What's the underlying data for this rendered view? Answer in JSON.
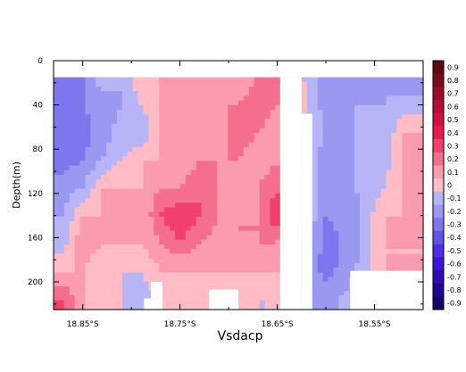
{
  "chart_data": {
    "type": "heatmap",
    "title": "",
    "xlabel": "Vsdacp",
    "ylabel": "Depth(m)",
    "x_ticks": [
      "18.85°S",
      "18.75°S",
      "18.65°S",
      "18.55°S"
    ],
    "x_tick_values": [
      -18.85,
      -18.75,
      -18.65,
      -18.55
    ],
    "xlim": [
      -18.88,
      -18.5
    ],
    "y_ticks": [
      "0",
      "40",
      "80",
      "120",
      "160",
      "200"
    ],
    "y_tick_values": [
      0,
      40,
      80,
      120,
      160,
      200
    ],
    "ylim": [
      225,
      0
    ],
    "colorbar": {
      "labels": [
        "0.9",
        "0.8",
        "0.7",
        "0.6",
        "0.5",
        "0.4",
        "0.3",
        "0.2",
        "0.1",
        "0",
        "-0.1",
        "-0.2",
        "-0.3",
        "-0.4",
        "-0.5",
        "-0.6",
        "-0.7",
        "-0.8",
        "-0.9"
      ],
      "levels": [
        0.9,
        0.8,
        0.7,
        0.6,
        0.5,
        0.4,
        0.3,
        0.2,
        0.1,
        0,
        -0.1,
        -0.2,
        -0.3,
        -0.4,
        -0.5,
        -0.6,
        -0.7,
        -0.8,
        -0.9
      ],
      "colors": [
        "#5e0a14",
        "#7a0b1e",
        "#970d2a",
        "#b40e35",
        "#d10f40",
        "#e9194f",
        "#f1406d",
        "#f56f8d",
        "#fb9bb0",
        "#ffbcc4",
        "#b7b5f5",
        "#9a98f1",
        "#7e76ec",
        "#6453e8",
        "#4d2fe4",
        "#3b14d8",
        "#2d0cb4",
        "#1f0890",
        "#12046d"
      ]
    },
    "columns": [
      {
        "x": -18.87,
        "values": [
          -0.35,
          -0.35,
          -0.3,
          -0.3,
          -0.2,
          -0.15,
          -0.1,
          0.05,
          0.25
        ]
      },
      {
        "x": -18.85,
        "values": [
          -0.25,
          -0.25,
          -0.3,
          -0.25,
          -0.15,
          0.05,
          0.15,
          0.05,
          0.05
        ]
      },
      {
        "x": -18.83,
        "values": [
          -0.1,
          -0.2,
          -0.2,
          -0.15,
          0.05,
          0.05,
          0.05,
          -0.05,
          -0.05
        ]
      },
      {
        "x": -18.81,
        "values": [
          -0.15,
          -0.15,
          -0.1,
          -0.05,
          0.05,
          0.1,
          0.05,
          -0.05,
          -0.05
        ]
      },
      {
        "x": -18.79,
        "values": [
          0.05,
          -0.05,
          -0.15,
          0.05,
          0.05,
          0.05,
          0.05,
          -0.05,
          -0.1
        ]
      },
      {
        "x": -18.77,
        "values": [
          0.05,
          0.05,
          0.05,
          0.05,
          0.15,
          0.25,
          0.15,
          0.05,
          -0.05
        ]
      },
      {
        "x": -18.75,
        "values": [
          0.15,
          0.1,
          0.15,
          0.05,
          0.15,
          0.35,
          0.25,
          0.05,
          0.05
        ]
      },
      {
        "x": -18.73,
        "values": [
          0.15,
          0.15,
          0.05,
          0.15,
          0.25,
          0.25,
          0.15,
          0.05,
          -0.05
        ]
      },
      {
        "x": -18.71,
        "values": [
          0.1,
          0.15,
          0.05,
          0.15,
          0.15,
          0.15,
          0.1,
          0.05,
          -0.05
        ]
      },
      {
        "x": -18.69,
        "values": [
          0.05,
          0.15,
          0.25,
          0.15,
          0.05,
          0.15,
          0.15,
          0.05,
          0.05
        ]
      },
      {
        "x": -18.67,
        "values": [
          0.15,
          0.25,
          0.15,
          0.05,
          0.15,
          0.15,
          0.15,
          0.05,
          -0.05
        ]
      },
      {
        "x": -18.65,
        "values": [
          0.25,
          0.15,
          0.05,
          0.15,
          0.25,
          0.35,
          0.15,
          0.05,
          -0.05
        ]
      },
      {
        "x": -18.645,
        "values": [
          0.15,
          0.15,
          0.05,
          0.05,
          0.15,
          0.2,
          0.1,
          0.05,
          -0.05
        ]
      },
      {
        "x": -18.6,
        "values": [
          -0.25,
          -0.2,
          -0.15,
          -0.2,
          -0.2,
          -0.25,
          -0.3,
          -0.3,
          -0.2
        ]
      },
      {
        "x": -18.57,
        "values": [
          -0.2,
          -0.15,
          -0.15,
          -0.15,
          -0.15,
          -0.2,
          -0.2,
          -0.15,
          -0.1
        ]
      },
      {
        "x": -18.54,
        "values": [
          -0.15,
          -0.15,
          -0.15,
          -0.1,
          -0.05,
          0.05,
          0.05,
          0.05,
          0.05
        ]
      },
      {
        "x": -18.52,
        "values": [
          -0.25,
          -0.1,
          0.05,
          0.05,
          0.05,
          0.05,
          0.05,
          0.05,
          0.05
        ]
      }
    ],
    "depths": [
      15,
      40,
      65,
      90,
      115,
      140,
      165,
      190,
      215
    ],
    "missing_regions": [
      {
        "x": [
          -18.647,
          -18.625
        ],
        "y": [
          15,
          225
        ]
      },
      {
        "x": [
          -18.625,
          -18.614
        ],
        "y": [
          48,
          225
        ]
      },
      {
        "x": [
          -18.575,
          -18.5
        ],
        "y": [
          190,
          225
        ]
      },
      {
        "x": [
          -18.78,
          -18.768
        ],
        "y": [
          200,
          225
        ]
      },
      {
        "x": [
          -18.787,
          -18.78
        ],
        "y": [
          215,
          225
        ]
      },
      {
        "x": [
          -18.72,
          -18.69
        ],
        "y": [
          207,
          225
        ]
      }
    ]
  }
}
